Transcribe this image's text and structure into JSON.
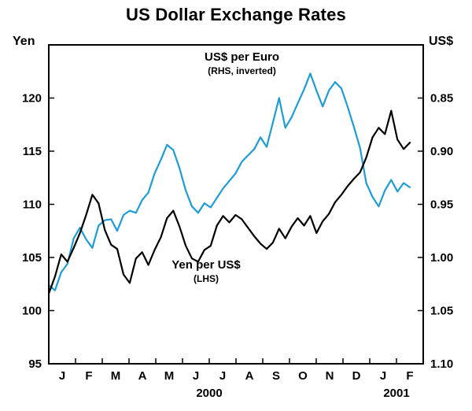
{
  "header": {
    "title": "US Dollar Exchange Rates"
  },
  "chart_data": {
    "type": "line",
    "title": "US Dollar Exchange Rates",
    "grid": false,
    "legend": "inline-annotations",
    "x_axis": {
      "months": [
        "J",
        "F",
        "M",
        "A",
        "M",
        "J",
        "J",
        "A",
        "S",
        "O",
        "N",
        "D",
        "J",
        "F"
      ],
      "years": [
        {
          "label": "2000",
          "center_month": 6
        },
        {
          "label": "2001",
          "center_month": 13
        }
      ],
      "range_months": [
        0,
        14
      ]
    },
    "left_axis": {
      "label": "Yen",
      "range": [
        95,
        125
      ],
      "ticks": [
        95,
        100,
        105,
        110,
        115,
        120
      ]
    },
    "right_axis": {
      "label": "US$",
      "inverted": true,
      "bottom_value": 1.1,
      "ticks": [
        0.85,
        0.9,
        0.95,
        1.0,
        1.05,
        1.1
      ],
      "mapping_note": "US$ value u plots at yen-equivalent 95 + (1.10 - u) * 100"
    },
    "x_months": [
      0,
      0.233,
      0.466,
      0.698,
      0.931,
      1.164,
      1.397,
      1.629,
      1.862,
      2.095,
      2.328,
      2.56,
      2.793,
      3.026,
      3.259,
      3.491,
      3.724,
      3.957,
      4.19,
      4.422,
      4.655,
      4.888,
      5.121,
      5.353,
      5.586,
      5.819,
      6.052,
      6.284,
      6.517,
      6.75,
      6.983,
      7.216,
      7.448,
      7.681,
      7.914,
      8.147,
      8.379,
      8.612,
      8.845,
      9.078,
      9.31,
      9.543,
      9.776,
      10.009,
      10.241,
      10.474,
      10.707,
      10.94,
      11.172,
      11.405,
      11.638,
      11.871,
      12.103,
      12.336,
      12.569,
      12.802,
      13.034,
      13.267,
      13.5
    ],
    "series": [
      {
        "name": "US$ per Euro",
        "data_name": "euro-series-line",
        "axis": "right",
        "color": "#1e9cd7",
        "annotation": {
          "line1": "US$ per Euro",
          "line2": "(RHS, inverted)"
        },
        "values": [
          1.026,
          1.031,
          1.014,
          1.006,
          0.982,
          0.972,
          0.983,
          0.991,
          0.97,
          0.965,
          0.964,
          0.975,
          0.96,
          0.956,
          0.958,
          0.946,
          0.939,
          0.921,
          0.908,
          0.894,
          0.899,
          0.916,
          0.937,
          0.952,
          0.958,
          0.949,
          0.953,
          0.944,
          0.935,
          0.928,
          0.921,
          0.91,
          0.904,
          0.898,
          0.887,
          0.896,
          0.873,
          0.85,
          0.878,
          0.868,
          0.855,
          0.842,
          0.827,
          0.843,
          0.858,
          0.843,
          0.835,
          0.841,
          0.858,
          0.877,
          0.897,
          0.93,
          0.943,
          0.952,
          0.937,
          0.927,
          0.938,
          0.93,
          0.934
        ]
      },
      {
        "name": "Yen per US$",
        "data_name": "yen-series-line",
        "axis": "left",
        "color": "#000000",
        "annotation": {
          "line1": "Yen per US$",
          "line2": "(LHS)"
        },
        "values": [
          101.6,
          103.2,
          105.3,
          104.6,
          105.9,
          107.3,
          109.0,
          110.9,
          110.1,
          107.6,
          106.2,
          105.8,
          103.4,
          102.6,
          104.9,
          105.5,
          104.3,
          105.7,
          106.9,
          108.7,
          109.4,
          107.9,
          106.1,
          104.9,
          104.6,
          105.7,
          106.1,
          108.0,
          108.9,
          108.3,
          109.0,
          108.6,
          107.8,
          107.0,
          106.3,
          105.8,
          106.4,
          107.7,
          106.8,
          107.9,
          108.7,
          108.0,
          108.9,
          107.3,
          108.4,
          109.1,
          110.2,
          110.9,
          111.7,
          112.4,
          113.0,
          114.4,
          116.3,
          117.2,
          116.6,
          118.8,
          116.1,
          115.2,
          115.8
        ]
      }
    ]
  }
}
